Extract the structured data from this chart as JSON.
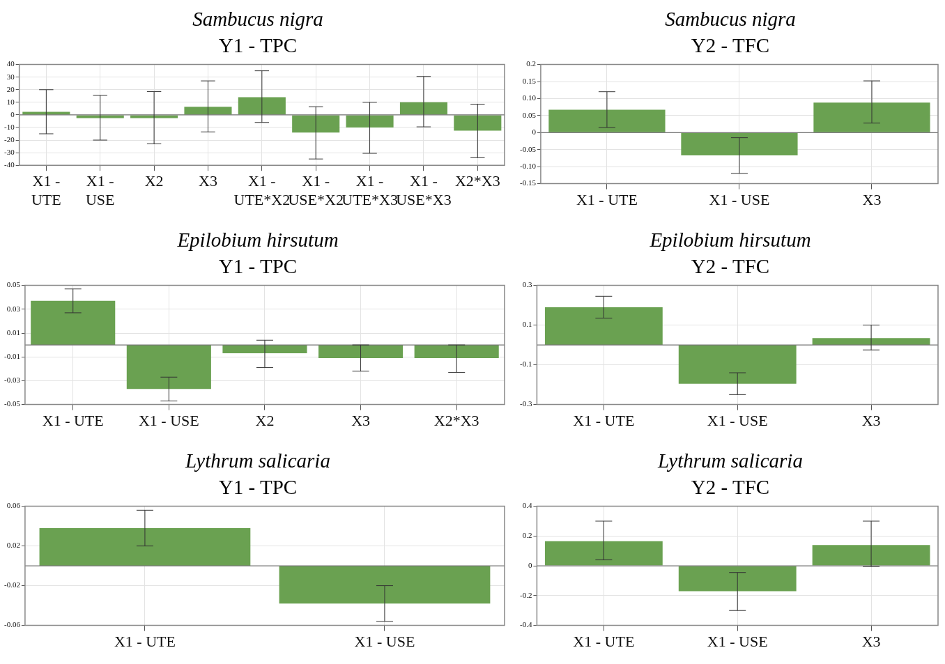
{
  "chart_data": [
    {
      "type": "bar",
      "title": "Sambucus nigra",
      "subtitle": "Y1 - TPC",
      "categories": [
        "X1 - UTE",
        "X1 - USE",
        "X2",
        "X3",
        "X1 - UTE*X2",
        "X1 - USE*X2",
        "X1 - UTE*X3",
        "X1 - USE*X3",
        "X2*X3"
      ],
      "values": [
        2.5,
        -2.5,
        -2.5,
        6.5,
        14,
        -14,
        -10,
        10,
        -12.5
      ],
      "errors": [
        [
          -15,
          20
        ],
        [
          -20,
          15.5
        ],
        [
          -23,
          18.5
        ],
        [
          -13.5,
          27
        ],
        [
          -6,
          35
        ],
        [
          -35,
          6.5
        ],
        [
          -30.5,
          10
        ],
        [
          -9.5,
          30.5
        ],
        [
          -34,
          8.5
        ]
      ],
      "color": "#6aa151",
      "ylim": [
        -40,
        40
      ],
      "yticks": [
        -40,
        -30,
        -20,
        -10,
        0,
        10,
        20,
        30,
        40
      ],
      "grid": true
    },
    {
      "type": "bar",
      "title": "Sambucus nigra",
      "subtitle": "Y2 - TFC",
      "categories": [
        "X1 - UTE",
        "X1 - USE",
        "X3"
      ],
      "values": [
        0.067,
        -0.067,
        0.088
      ],
      "errors": [
        [
          0.015,
          0.12
        ],
        [
          -0.12,
          -0.015
        ],
        [
          0.028,
          0.152
        ]
      ],
      "color": "#6aa151",
      "ylim": [
        -0.15,
        0.2
      ],
      "yticks": [
        -0.15,
        {
          "value": -0.1,
          "label": "-0.10"
        },
        -0.05,
        0,
        0.05,
        {
          "value": 0.1,
          "label": "0.10"
        },
        0.15,
        0.2
      ],
      "grid": true
    },
    {
      "type": "bar",
      "title": "Epilobium hirsutum",
      "subtitle": "Y1 - TPC",
      "categories": [
        "X1 - UTE",
        "X1 - USE",
        "X2",
        "X3",
        "X2*X3"
      ],
      "values": [
        0.037,
        -0.037,
        -0.007,
        -0.011,
        -0.011
      ],
      "errors": [
        [
          0.027,
          0.047
        ],
        [
          -0.047,
          -0.027
        ],
        [
          -0.019,
          0.004
        ],
        [
          -0.022,
          0
        ],
        [
          -0.023,
          0
        ]
      ],
      "color": "#6aa151",
      "ylim": [
        -0.05,
        0.05
      ],
      "yticks": [
        -0.05,
        -0.03,
        -0.01,
        0.01,
        0.03,
        0.05
      ],
      "grid": true
    },
    {
      "type": "bar",
      "title": "Epilobium hirsutum",
      "subtitle": "Y2 - TFC",
      "categories": [
        "X1 - UTE",
        "X1 - USE",
        "X3"
      ],
      "values": [
        0.19,
        -0.195,
        0.035
      ],
      "errors": [
        [
          0.135,
          0.245
        ],
        [
          -0.25,
          -0.14
        ],
        [
          -0.025,
          0.1
        ]
      ],
      "color": "#6aa151",
      "ylim": [
        -0.3,
        0.3
      ],
      "yticks": [
        -0.3,
        -0.1,
        0.1,
        0.3
      ],
      "grid": true
    },
    {
      "type": "bar",
      "title": "Lythrum salicaria",
      "subtitle": "Y1 - TPC",
      "categories": [
        "X1 - UTE",
        "X1 - USE"
      ],
      "values": [
        0.038,
        -0.038
      ],
      "errors": [
        [
          0.02,
          0.056
        ],
        [
          -0.056,
          -0.02
        ]
      ],
      "color": "#6aa151",
      "ylim": [
        -0.06,
        0.06
      ],
      "yticks": [
        -0.06,
        -0.02,
        0.02,
        0.06
      ],
      "grid": true
    },
    {
      "type": "bar",
      "title": "Lythrum salicaria",
      "subtitle": "Y2 - TFC",
      "categories": [
        "X1 - UTE",
        "X1 - USE",
        "X3"
      ],
      "values": [
        0.165,
        -0.17,
        0.14
      ],
      "errors": [
        [
          0.04,
          0.3
        ],
        [
          -0.3,
          -0.045
        ],
        [
          -0.005,
          0.3
        ]
      ],
      "color": "#6aa151",
      "ylim": [
        -0.4,
        0.4
      ],
      "yticks": [
        -0.4,
        -0.2,
        0,
        0.2,
        0.4
      ],
      "grid": true
    }
  ]
}
